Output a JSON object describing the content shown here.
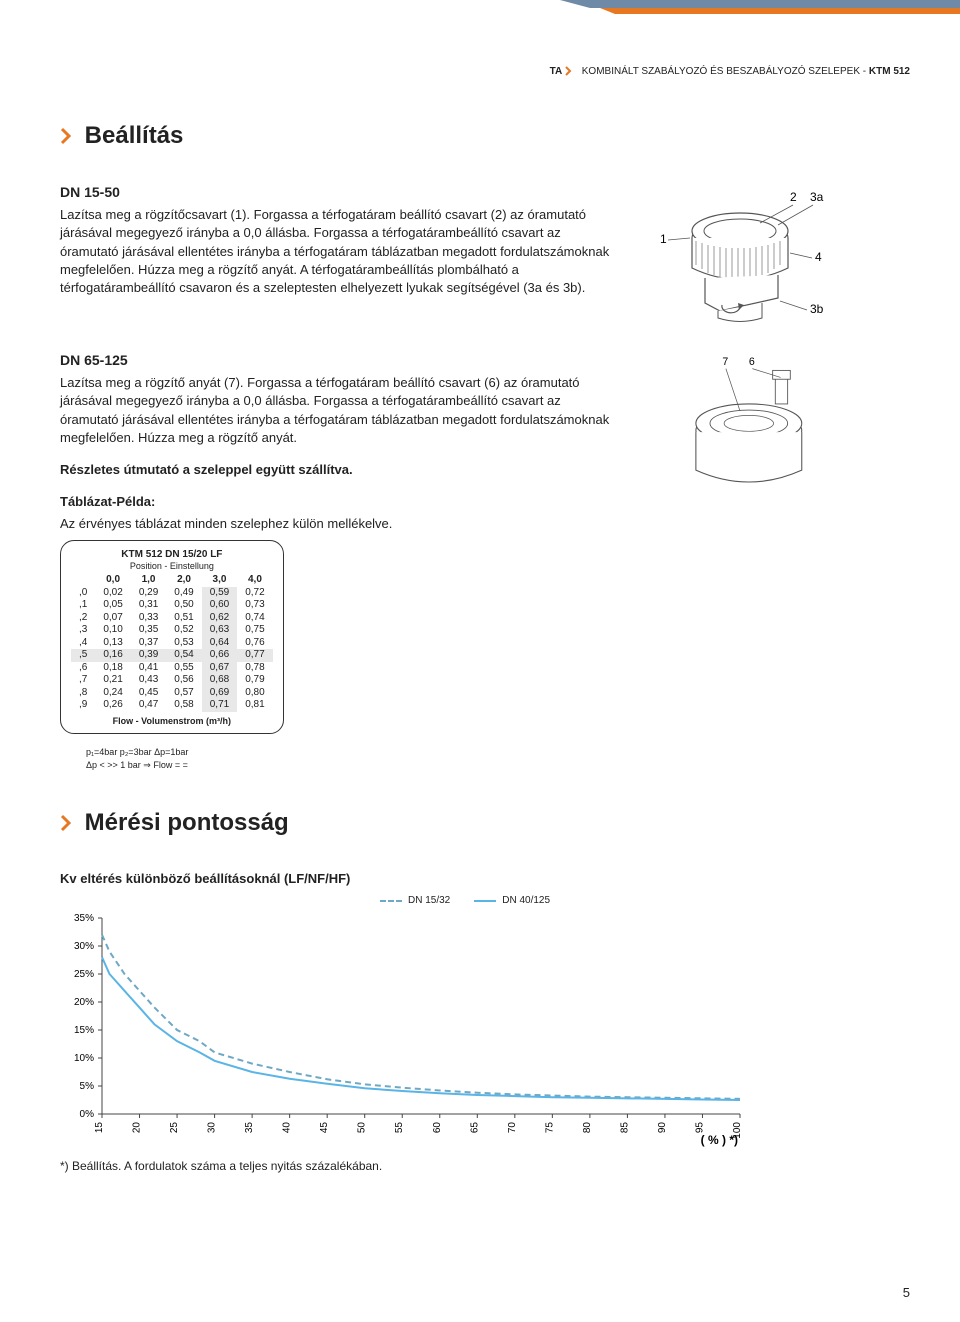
{
  "header": {
    "brand": "TA",
    "subtitle_parts": [
      "KOMBINÁLT SZABÁLYOZÓ ÉS BESZABÁLYOZÓ SZELEPEK - ",
      "KTM 512"
    ]
  },
  "stripe_colors": {
    "blue": "#6f8aa6",
    "orange": "#e87722"
  },
  "section1": {
    "title": "Beállítás",
    "block1_heading": "DN 15-50",
    "block1_text": "Lazítsa meg a rögzítőcsavart (1). Forgassa a térfogatáram beállító csavart (2) az óramutató járásával megegyező irányba a 0,0 állásba. Forgassa a térfogatárambeállító csavart az óramutató járásával ellentétes irányba a térfogatáram táblázatban megadott fordulatszámoknak megfelelően. Húzza meg a rögzítő anyát. A térfogatárambeállítás plombálható a térfogatárambeállító csavaron és a szeleptesten elhelyezett lyukak segítségével (3a és 3b).",
    "block2_heading": "DN 65-125",
    "block2_text": "Lazítsa meg a rögzítő anyát (7). Forgassa a térfogatáram beállító csavart (6) az óramutató járásával megegyező irányba a 0,0 állásba. Forgassa a térfogatárambeállító csavart az óramutató járásával ellentétes irányba a térfogatáram táblázatban megadott fordulatszámoknak megfelelően. Húzza meg a rögzítő anyát.",
    "detail_line": "Részletes útmutató a szeleppel együtt szállítva.",
    "tbl_heading": "Táblázat-Példa:",
    "tbl_sub": "Az érvényes táblázat minden szelephez külön mellékelve.",
    "fig1_labels": [
      "1",
      "2",
      "3a",
      "4",
      "3b"
    ],
    "fig2_labels": [
      "7",
      "6"
    ]
  },
  "mini_table": {
    "title": "KTM 512 DN 15/20 LF",
    "subtitle": "Position - Einstellung",
    "footer": "Flow - Volumenstrom (m³/h)",
    "col_headers": [
      "",
      "0,0",
      "1,0",
      "2,0",
      "3,0",
      "4,0"
    ],
    "row_headers": [
      ",0",
      ",1",
      ",2",
      ",3",
      ",4",
      ",5",
      ",6",
      ",7",
      ",8",
      ",9"
    ],
    "rows": [
      [
        "0,02",
        "0,29",
        "0,49",
        "0,59",
        "0,72"
      ],
      [
        "0,05",
        "0,31",
        "0,50",
        "0,60",
        "0,73"
      ],
      [
        "0,07",
        "0,33",
        "0,51",
        "0,62",
        "0,74"
      ],
      [
        "0,10",
        "0,35",
        "0,52",
        "0,63",
        "0,75"
      ],
      [
        "0,13",
        "0,37",
        "0,53",
        "0,64",
        "0,76"
      ],
      [
        "0,16",
        "0,39",
        "0,54",
        "0,66",
        "0,77"
      ],
      [
        "0,18",
        "0,41",
        "0,55",
        "0,67",
        "0,78"
      ],
      [
        "0,21",
        "0,43",
        "0,56",
        "0,68",
        "0,79"
      ],
      [
        "0,24",
        "0,45",
        "0,57",
        "0,69",
        "0,80"
      ],
      [
        "0,26",
        "0,47",
        "0,58",
        "0,71",
        "0,81"
      ]
    ],
    "highlight_col_index": 3,
    "highlight_row_index": 5,
    "under_note1": "p₁=4bar   p₂=3bar   Δp=1bar",
    "under_note2": "Δp < >> 1 bar ⇒ Flow = ="
  },
  "section2": {
    "title": "Mérési pontosság",
    "chart_heading": "Kv eltérés különböző beállításoknál (LF/NF/HF)",
    "chart": {
      "type": "line",
      "x_min": 15,
      "x_max": 100,
      "x_step": 5,
      "y_min": 0,
      "y_max": 35,
      "y_step": 5,
      "y_suffix": "%",
      "background_color": "#ffffff",
      "grid_color": "none",
      "axis_color": "#444444",
      "label_fontsize": 10,
      "series": [
        {
          "name": "DN 15/32",
          "color": "#6fa8c4",
          "dash": "6,4",
          "points": [
            [
              15,
              32
            ],
            [
              16,
              29
            ],
            [
              18,
              25
            ],
            [
              20,
              22
            ],
            [
              22,
              19
            ],
            [
              25,
              15
            ],
            [
              28,
              13
            ],
            [
              30,
              11
            ],
            [
              35,
              9
            ],
            [
              40,
              7.5
            ],
            [
              45,
              6.2
            ],
            [
              50,
              5.3
            ],
            [
              55,
              4.7
            ],
            [
              60,
              4.2
            ],
            [
              65,
              3.8
            ],
            [
              70,
              3.5
            ],
            [
              75,
              3.3
            ],
            [
              80,
              3.1
            ],
            [
              85,
              3.0
            ],
            [
              90,
              2.9
            ],
            [
              95,
              2.8
            ],
            [
              100,
              2.7
            ]
          ]
        },
        {
          "name": "DN 40/125",
          "color": "#5ab4e6",
          "dash": "none",
          "points": [
            [
              15,
              28
            ],
            [
              16,
              25
            ],
            [
              18,
              22
            ],
            [
              20,
              19
            ],
            [
              22,
              16
            ],
            [
              25,
              13
            ],
            [
              28,
              11
            ],
            [
              30,
              9.5
            ],
            [
              35,
              7.5
            ],
            [
              40,
              6.3
            ],
            [
              45,
              5.4
            ],
            [
              50,
              4.6
            ],
            [
              55,
              4.1
            ],
            [
              60,
              3.7
            ],
            [
              65,
              3.4
            ],
            [
              70,
              3.2
            ],
            [
              75,
              3.0
            ],
            [
              80,
              2.9
            ],
            [
              85,
              2.8
            ],
            [
              90,
              2.7
            ],
            [
              95,
              2.6
            ],
            [
              100,
              2.5
            ]
          ]
        }
      ],
      "x_axis_label_right": "( % ) *)"
    },
    "footnote": "*) Beállítás. A fordulatok száma a teljes nyitás százalékában."
  },
  "page_number": "5"
}
